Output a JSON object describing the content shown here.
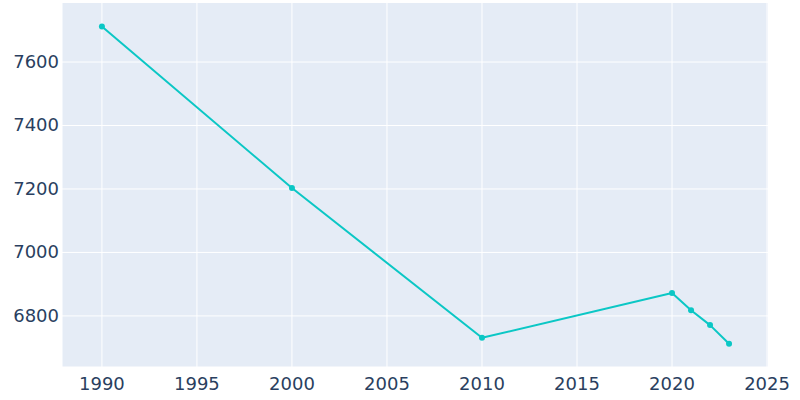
{
  "chart_data": {
    "type": "line",
    "x": [
      1990,
      2000,
      2010,
      2020,
      2021,
      2022,
      2023
    ],
    "values": [
      7712,
      7203,
      6731,
      6872,
      6818,
      6771,
      6712
    ],
    "color": "#0bc7c5",
    "marker": "circle",
    "xlim": [
      1987.9,
      2025.05
    ],
    "xticks": [
      1990,
      1995,
      2000,
      2005,
      2010,
      2015,
      2020,
      2025
    ],
    "ylim": [
      6639,
      7786
    ],
    "yticks": [
      6800,
      7000,
      7200,
      7400,
      7600
    ],
    "grid": true
  }
}
